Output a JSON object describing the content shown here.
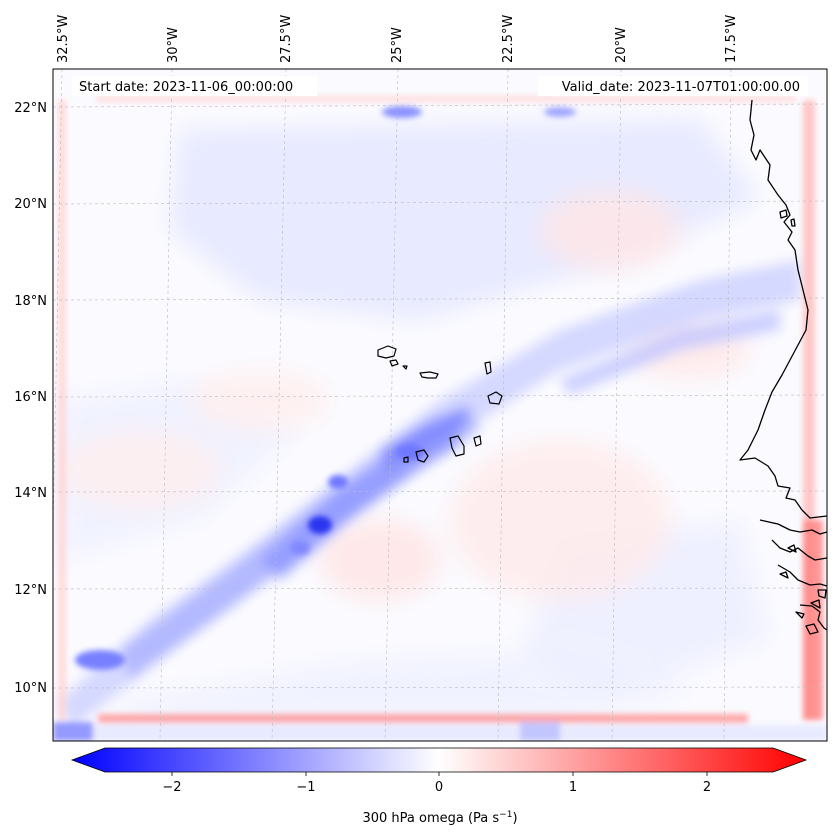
{
  "map": {
    "start_label": "Start date: 2023-11-06_00:00:00",
    "valid_label": "Valid_date: 2023-11-07T01:00:00.00",
    "lon_labels": [
      "32.5°W",
      "30°W",
      "27.5°W",
      "25°W",
      "22.5°W",
      "20°W",
      "17.5°W"
    ],
    "lat_labels": [
      "22°N",
      "20°N",
      "18°N",
      "16°N",
      "14°N",
      "12°N",
      "10°N"
    ],
    "gridlines": true,
    "coastlines": [
      "Cape Verde islands",
      "West African coast"
    ]
  },
  "colorbar": {
    "ticks": [
      "−2",
      "−1",
      "0",
      "1",
      "2"
    ],
    "label_main": "300 hPa omega (Pa s",
    "label_sup": "−1",
    "label_end": ")",
    "cmap": "bwr",
    "range": [
      -2.75,
      2.75
    ],
    "extend": "both",
    "colors": {
      "negative": "#0000ff",
      "zero": "#ffffff",
      "positive": "#ff0000"
    }
  }
}
